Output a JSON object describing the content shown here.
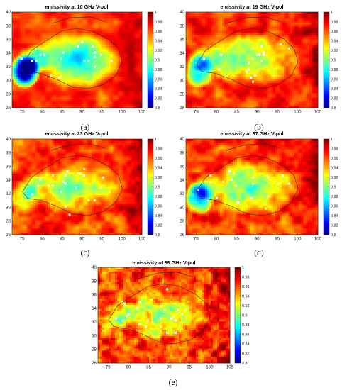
{
  "figure": {
    "panels": [
      {
        "id": "a",
        "title": "emissivity at 10 GHz V-pol",
        "caption": "(a)"
      },
      {
        "id": "b",
        "title": "emissivity at 19 GHz V-pol",
        "caption": "(b)"
      },
      {
        "id": "c",
        "title": "emissivity at 23 GHz V-pol",
        "caption": "(c)"
      },
      {
        "id": "d",
        "title": "emissivity at 37 GHz V-pol",
        "caption": "(d)"
      },
      {
        "id": "e",
        "title": "emissivity at 89 GHz V-pol",
        "caption": "(e)"
      }
    ],
    "x_ticks": [
      "75",
      "80",
      "85",
      "90",
      "95",
      "100",
      "105"
    ],
    "y_ticks": [
      "26",
      "28",
      "30",
      "32",
      "34",
      "36",
      "38",
      "40"
    ],
    "colorbar_ticks": [
      "1",
      "0.98",
      "0.96",
      "0.94",
      "0.92",
      "0.9",
      "0.88",
      "0.86",
      "0.84",
      "0.82",
      "0.8"
    ],
    "colormap": [
      "#00008f",
      "#0000ff",
      "#0080ff",
      "#00ffff",
      "#80ff80",
      "#ffff00",
      "#ff8000",
      "#ff0000",
      "#800000"
    ]
  },
  "chart_data": [
    {
      "type": "heatmap",
      "title": "emissivity at 10 GHz V-pol",
      "xlabel": "",
      "ylabel": "",
      "xlim": [
        72.5,
        105
      ],
      "ylim": [
        26,
        40
      ],
      "clim": [
        0.8,
        1
      ],
      "x_ticks": [
        75,
        80,
        85,
        90,
        95,
        100,
        105
      ],
      "y_ticks": [
        26,
        28,
        30,
        32,
        34,
        36,
        38,
        40
      ],
      "grid": false,
      "colorbar": "right"
    },
    {
      "type": "heatmap",
      "title": "emissivity at 19 GHz V-pol",
      "xlabel": "",
      "ylabel": "",
      "xlim": [
        72.5,
        105
      ],
      "ylim": [
        26,
        40
      ],
      "clim": [
        0.8,
        1
      ],
      "x_ticks": [
        75,
        80,
        85,
        90,
        95,
        100,
        105
      ],
      "y_ticks": [
        26,
        28,
        30,
        32,
        34,
        36,
        38,
        40
      ],
      "grid": false,
      "colorbar": "right"
    },
    {
      "type": "heatmap",
      "title": "emissivity at 23 GHz V-pol",
      "xlabel": "",
      "ylabel": "",
      "xlim": [
        72.5,
        105
      ],
      "ylim": [
        26,
        40
      ],
      "clim": [
        0.8,
        1
      ],
      "x_ticks": [
        75,
        80,
        85,
        90,
        95,
        100,
        105
      ],
      "y_ticks": [
        26,
        28,
        30,
        32,
        34,
        36,
        38,
        40
      ],
      "grid": false,
      "colorbar": "right"
    },
    {
      "type": "heatmap",
      "title": "emissivity at 37 GHz V-pol",
      "xlabel": "",
      "ylabel": "",
      "xlim": [
        72.5,
        105
      ],
      "ylim": [
        26,
        40
      ],
      "clim": [
        0.8,
        1
      ],
      "x_ticks": [
        75,
        80,
        85,
        90,
        95,
        100,
        105
      ],
      "y_ticks": [
        26,
        28,
        30,
        32,
        34,
        36,
        38,
        40
      ],
      "grid": false,
      "colorbar": "right"
    },
    {
      "type": "heatmap",
      "title": "emissivity at 89 GHz V-pol",
      "xlabel": "",
      "ylabel": "",
      "xlim": [
        72.5,
        105
      ],
      "ylim": [
        26,
        40
      ],
      "clim": [
        0.8,
        1
      ],
      "x_ticks": [
        75,
        80,
        85,
        90,
        95,
        100,
        105
      ],
      "y_ticks": [
        26,
        28,
        30,
        32,
        34,
        36,
        38,
        40
      ],
      "grid": false,
      "colorbar": "right"
    }
  ]
}
